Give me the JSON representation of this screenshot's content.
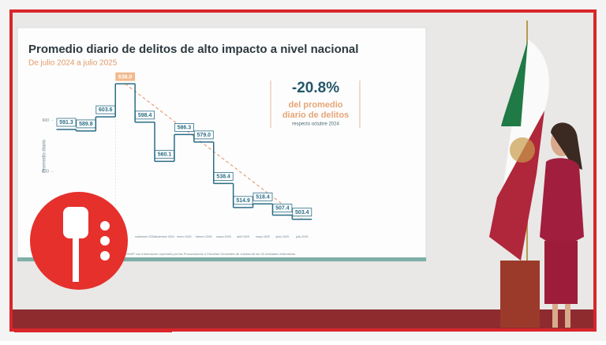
{
  "chart_data": {
    "type": "step",
    "title": "Promedio diario de delitos de alto impacto a nivel nacional",
    "subtitle": "De julio 2024 a julio 2025",
    "y_label": "Promedio diario",
    "categories": [
      null,
      null,
      null,
      null,
      "noviembre 2024",
      "diciembre 2024",
      "enero 2025",
      "febrero 2025",
      "marzo 2025",
      "abril 2025",
      "mayo 2025",
      "junio 2025",
      "julio 2025"
    ],
    "values": [
      591.3,
      589.8,
      603.6,
      636.0,
      598.4,
      560.1,
      586.3,
      579.0,
      538.4,
      514.9,
      518.4,
      507.4,
      503.4
    ],
    "value_labels": [
      "591.3",
      "589.8",
      "603.6",
      "636.0",
      "598.4",
      "560.1",
      "586.3",
      "579.0",
      "538.4",
      "514.9",
      "518.4",
      "507.4",
      "503.4"
    ],
    "color": "#2b6d86",
    "highlight_color": "#f2b88c",
    "trend_color": "#e9a07c",
    "ylim": [
      480,
      650
    ],
    "yticks": [
      550,
      600
    ],
    "annotation": {
      "value": "-20.8%",
      "line1": "del promedio",
      "line2": "diario de delitos",
      "line3": "respecto octubre 2024"
    },
    "source": "Fuente: SESNSP con información reportada por las Procuradurías o Fiscalías Generales de Justicia de las 32 entidades federativas."
  }
}
